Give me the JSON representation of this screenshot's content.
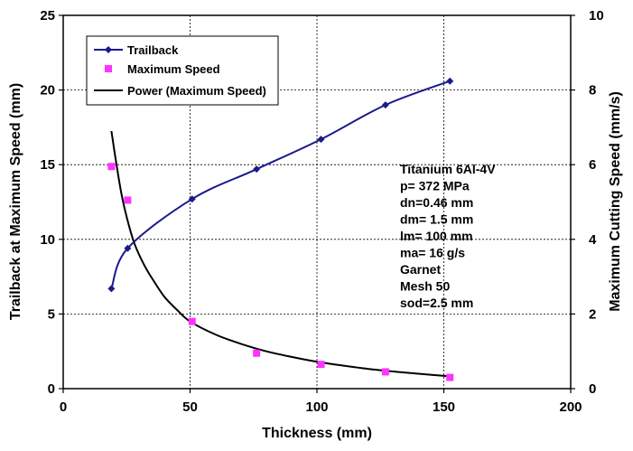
{
  "chart_data": {
    "type": "line",
    "x": {
      "label": "Thickness (mm)",
      "range": [
        0,
        200
      ],
      "ticks": [
        "0",
        "50",
        "100",
        "150",
        "200"
      ]
    },
    "y_left": {
      "label": "Trailback at Maximum Speed (mm)",
      "range": [
        0,
        25
      ],
      "ticks": [
        "0",
        "5",
        "10",
        "15",
        "20",
        "25"
      ]
    },
    "y_right": {
      "label": "Maximum Cutting Speed (mm/s)",
      "range": [
        0,
        10
      ],
      "ticks": [
        "0",
        "2",
        "4",
        "6",
        "8",
        "10"
      ]
    },
    "grid": true,
    "legend_position": "top-left",
    "series": [
      {
        "name": "Trailback",
        "axis": "left",
        "style": "line-diamond",
        "color": "#1a1a8c",
        "points": [
          [
            19,
            6.7
          ],
          [
            25.4,
            9.4
          ],
          [
            50.8,
            12.7
          ],
          [
            76.2,
            14.7
          ],
          [
            101.6,
            16.7
          ],
          [
            127,
            19.0
          ],
          [
            152.4,
            20.6
          ]
        ]
      },
      {
        "name": "Maximum Speed",
        "axis": "right",
        "style": "square-markers",
        "color": "#ff33ff",
        "points": [
          [
            19,
            5.95
          ],
          [
            25.4,
            5.05
          ],
          [
            50.8,
            1.8
          ],
          [
            76.2,
            0.95
          ],
          [
            101.6,
            0.65
          ],
          [
            127,
            0.45
          ],
          [
            152.4,
            0.3
          ]
        ]
      },
      {
        "name": "Power (Maximum Speed)",
        "axis": "right",
        "style": "line",
        "color": "#000000",
        "points": [
          [
            19,
            6.9
          ],
          [
            21,
            6.0
          ],
          [
            23,
            5.2
          ],
          [
            25,
            4.6
          ],
          [
            28,
            3.9
          ],
          [
            32,
            3.3
          ],
          [
            36,
            2.85
          ],
          [
            40,
            2.45
          ],
          [
            45,
            2.1
          ],
          [
            50,
            1.8
          ],
          [
            60,
            1.45
          ],
          [
            70,
            1.2
          ],
          [
            80,
            1.0
          ],
          [
            90,
            0.85
          ],
          [
            100,
            0.72
          ],
          [
            110,
            0.62
          ],
          [
            120,
            0.53
          ],
          [
            130,
            0.46
          ],
          [
            140,
            0.4
          ],
          [
            152.4,
            0.33
          ]
        ]
      }
    ],
    "annotation": [
      "Titanium 6Al-4V",
      "p= 372 MPa",
      "dn=0.46 mm",
      "dm= 1.5 mm",
      "lm= 100 mm",
      "ma= 16 g/s",
      "Garnet",
      "Mesh 50",
      "sod=2.5 mm"
    ]
  }
}
